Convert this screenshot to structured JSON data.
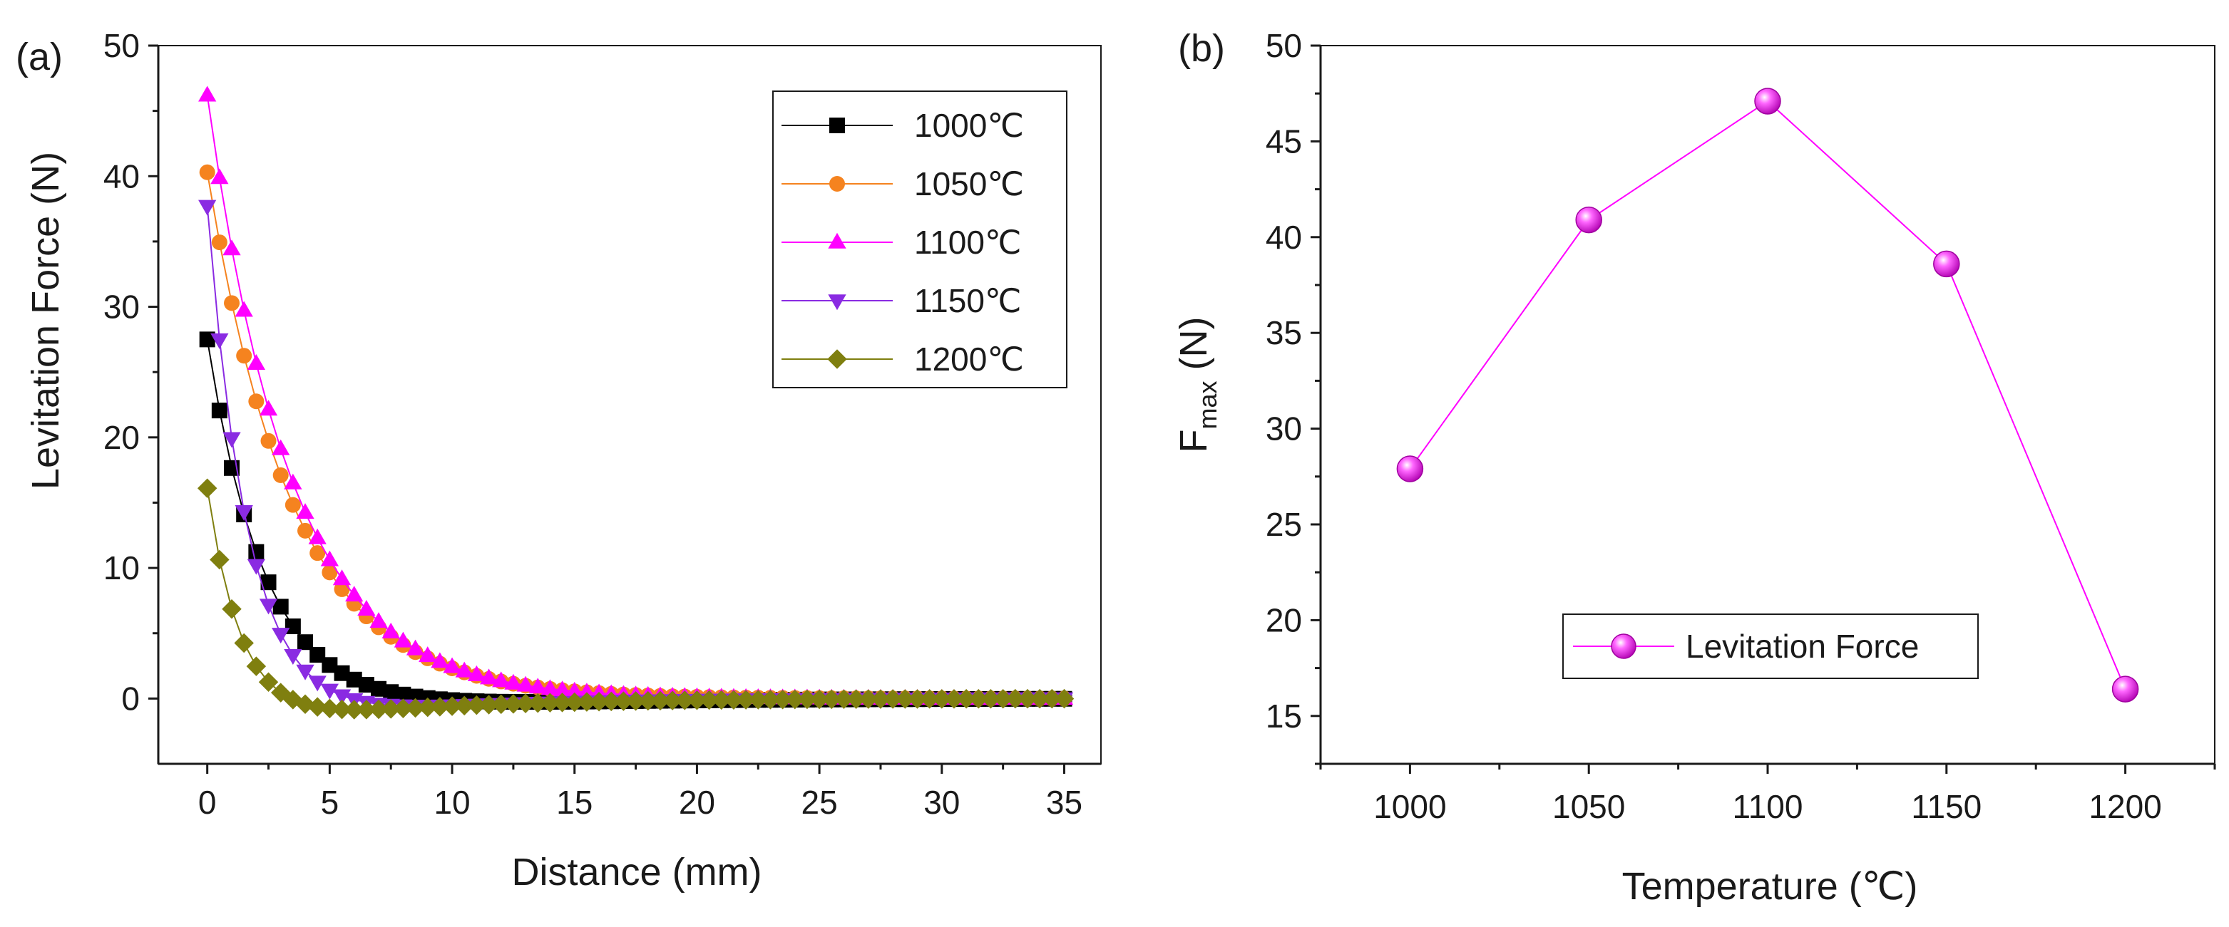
{
  "figure": {
    "panel_a_label": "(a)",
    "panel_b_label": "(b)"
  },
  "chart_data": [
    {
      "type": "line",
      "panel": "(a)",
      "title": "",
      "xlabel": "Distance (mm)",
      "ylabel": "Levitation Force (N)",
      "xlim": [
        -2,
        36.5
      ],
      "ylim": [
        -5,
        50
      ],
      "xticks": [
        0,
        5,
        10,
        15,
        20,
        25,
        30,
        35
      ],
      "yticks": [
        0,
        10,
        20,
        30,
        40,
        50
      ],
      "grid": false,
      "legend_position": "top-right",
      "series": [
        {
          "name": "1000℃",
          "color": "#000000",
          "marker": "square",
          "peak": 27.5,
          "decay": 2.4,
          "dip": -2.2,
          "dip_decay": 7.5
        },
        {
          "name": "1050℃",
          "color": "#f5831f",
          "marker": "circle",
          "peak": 40.3,
          "decay": 3.5,
          "dip": 0.0,
          "dip_decay": 8.0
        },
        {
          "name": "1100℃",
          "color": "#ff00ff",
          "marker": "triangle-up",
          "peak": 46.2,
          "decay": 3.4,
          "dip": 0.0,
          "dip_decay": 8.0
        },
        {
          "name": "1150℃",
          "color": "#8a2be2",
          "marker": "triangle-down",
          "peak": 37.7,
          "decay": 1.7,
          "dip": -3.5,
          "dip_decay": 6.0
        },
        {
          "name": "1200℃",
          "color": "#7f7f0f",
          "marker": "diamond",
          "peak": 16.1,
          "decay": 1.4,
          "dip": -2.8,
          "dip_decay": 6.5
        }
      ],
      "x_start": 0,
      "x_step": 0.5,
      "x_end": 35
    },
    {
      "type": "line",
      "panel": "(b)",
      "title": "",
      "xlabel": "Temperature (℃)",
      "ylabel_main": "F",
      "ylabel_sub": "max",
      "ylabel_units": " (N)",
      "xlim": [
        975,
        1225
      ],
      "ylim": [
        12.5,
        50
      ],
      "xticks": [
        1000,
        1050,
        1100,
        1150,
        1200
      ],
      "yticks": [
        15,
        20,
        25,
        30,
        35,
        40,
        45,
        50
      ],
      "grid": false,
      "legend_position": "bottom-center",
      "series": [
        {
          "name": "Levitation Force",
          "color": "#ff00ff",
          "marker": "sphere",
          "x": [
            1000,
            1050,
            1100,
            1150,
            1200
          ],
          "y": [
            27.9,
            40.9,
            47.1,
            38.6,
            16.4
          ]
        }
      ]
    }
  ]
}
